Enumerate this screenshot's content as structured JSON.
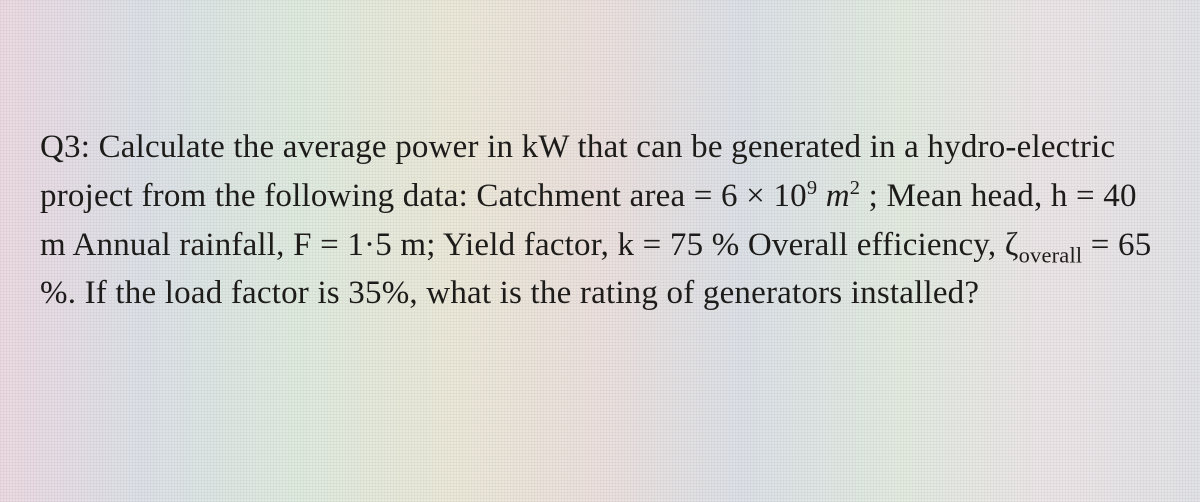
{
  "textColor": "#1d1c1a",
  "fontFamily": "Georgia, 'Times New Roman', Times, serif",
  "fontSizePx": 33,
  "lineHeight": 1.48,
  "question": {
    "label": "Q3:",
    "segments": {
      "s1": "Calculate the average power in kW that can be generated in a hydro-electric project from the following data: Catchment area = 6 × 10",
      "catchExp": "9",
      "s2": " ",
      "unit_m": "m",
      "unitExp": "2",
      "s3": " ; Mean head, h = 40 m Annual rainfall, F = 1·5 m; Yield factor, k = 75 % Overall efficiency, ζ",
      "effSub": "overall",
      "s4": " = 65 %. If the load factor is  35%, what is the rating of generators installed?"
    }
  }
}
